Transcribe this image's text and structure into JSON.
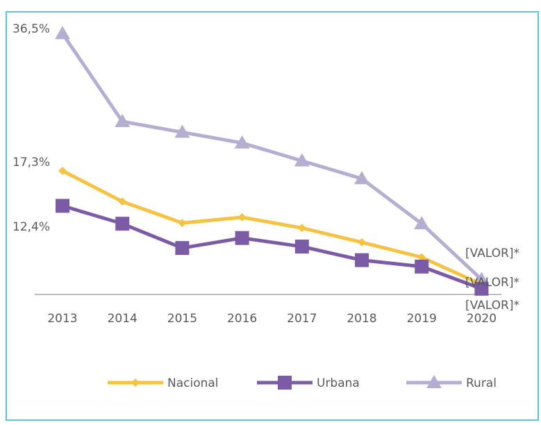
{
  "chart_data": {
    "type": "line",
    "categories": [
      "2013",
      "2014",
      "2015",
      "2016",
      "2017",
      "2018",
      "2019",
      "2020"
    ],
    "series": [
      {
        "name": "Nacional",
        "color": "#f5c242",
        "values": [
          17.3,
          13.0,
          10.0,
          10.8,
          9.3,
          7.3,
          5.2,
          1.4
        ],
        "value_labels": [
          "17,3%",
          null,
          null,
          null,
          null,
          null,
          null,
          "[VALOR]*"
        ]
      },
      {
        "name": "Urbana",
        "color": "#7b5aa6",
        "values": [
          12.4,
          9.9,
          6.5,
          7.9,
          6.7,
          4.8,
          3.9,
          0.8
        ],
        "value_labels": [
          "12,4%",
          null,
          null,
          null,
          null,
          null,
          null,
          "[VALOR]*"
        ]
      },
      {
        "name": "Rural",
        "color": "#b5aed0",
        "values": [
          36.5,
          24.2,
          22.7,
          21.2,
          18.7,
          16.2,
          9.9,
          2.1
        ],
        "value_labels": [
          "36,5%",
          null,
          null,
          null,
          null,
          null,
          null,
          "[VALOR]*"
        ]
      }
    ],
    "ylim": [
      0,
      38
    ],
    "legend": "bottom"
  }
}
